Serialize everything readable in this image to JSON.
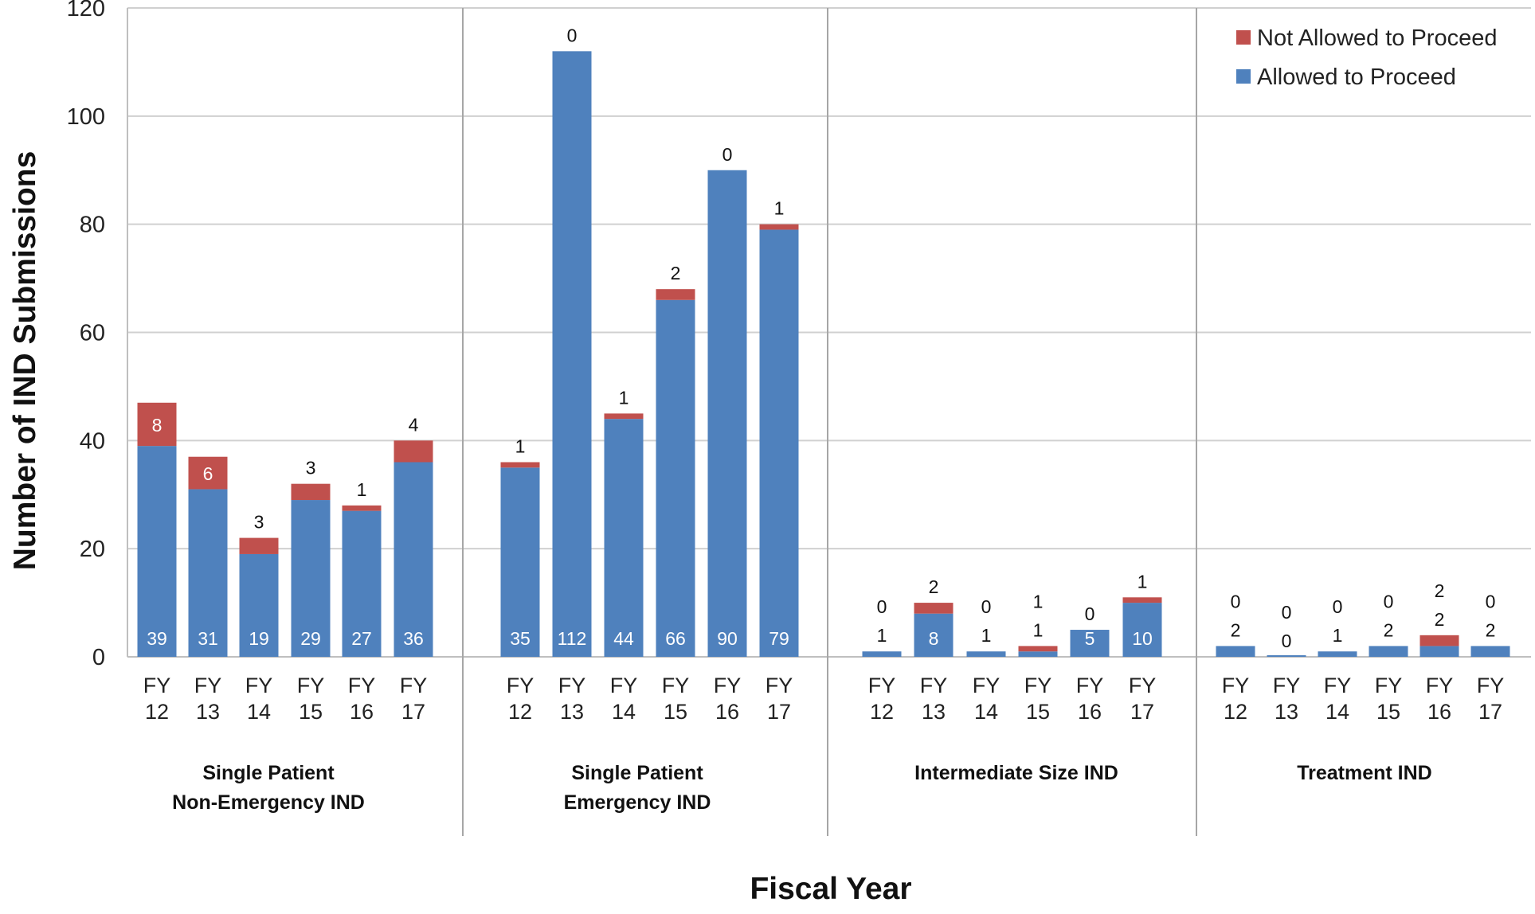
{
  "chart_data": {
    "type": "bar",
    "stacked": true,
    "xlabel": "Fiscal Year",
    "ylabel": "Number of IND Submissions",
    "ylim": [
      0,
      120
    ],
    "yticks": [
      0,
      20,
      40,
      60,
      80,
      100,
      120
    ],
    "grid": true,
    "legend_position": "top-right",
    "legend": [
      {
        "name": "Not Allowed to Proceed",
        "color": "#c0504d"
      },
      {
        "name": "Allowed to Proceed",
        "color": "#4f81bd"
      }
    ],
    "categories": [
      "FY 12",
      "FY 13",
      "FY 14",
      "FY 15",
      "FY 16",
      "FY 17"
    ],
    "groups": [
      {
        "label_lines": [
          "Single Patient",
          "Non-Emergency IND"
        ],
        "allowed": [
          39,
          31,
          19,
          29,
          27,
          36
        ],
        "not_allowed": [
          8,
          6,
          3,
          3,
          1,
          4
        ]
      },
      {
        "label_lines": [
          "Single Patient",
          "Emergency IND"
        ],
        "allowed": [
          35,
          112,
          44,
          66,
          90,
          79
        ],
        "not_allowed": [
          1,
          0,
          1,
          2,
          0,
          1
        ]
      },
      {
        "label_lines": [
          "Intermediate Size IND"
        ],
        "allowed": [
          1,
          8,
          1,
          1,
          5,
          10
        ],
        "not_allowed": [
          0,
          2,
          0,
          1,
          0,
          1
        ]
      },
      {
        "label_lines": [
          "Treatment IND"
        ],
        "allowed": [
          2,
          0,
          1,
          2,
          2,
          2
        ],
        "not_allowed": [
          0,
          0,
          0,
          0,
          2,
          0
        ]
      }
    ]
  }
}
